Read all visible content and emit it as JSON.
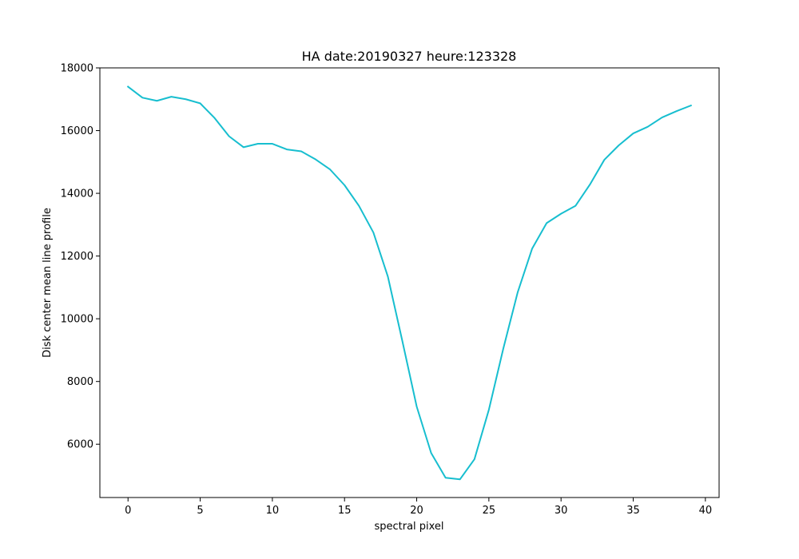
{
  "chart_data": {
    "type": "line",
    "title": "HA date:20190327 heure:123328",
    "xlabel": "spectral pixel",
    "ylabel": "Disk center mean line profile",
    "xlim": [
      -1.95,
      40.95
    ],
    "ylim": [
      4300,
      18000
    ],
    "xticks": [
      0,
      5,
      10,
      15,
      20,
      25,
      30,
      35,
      40
    ],
    "yticks": [
      6000,
      8000,
      10000,
      12000,
      14000,
      16000,
      18000
    ],
    "grid": false,
    "series": [
      {
        "color": "#17becf",
        "x": [
          0,
          1,
          2,
          3,
          4,
          5,
          6,
          7,
          8,
          9,
          10,
          11,
          12,
          13,
          14,
          15,
          16,
          17,
          18,
          19,
          20,
          21,
          22,
          23,
          24,
          25,
          26,
          27,
          28,
          29,
          30,
          31,
          32,
          33,
          34,
          35,
          36,
          37,
          38,
          39
        ],
        "y": [
          17400,
          17050,
          16950,
          17080,
          17000,
          16870,
          16400,
          15820,
          15470,
          15580,
          15580,
          15400,
          15340,
          15080,
          14760,
          14260,
          13600,
          12750,
          11350,
          9300,
          7200,
          5720,
          4930,
          4880,
          5520,
          7100,
          9050,
          10850,
          12240,
          13050,
          13350,
          13600,
          14280,
          15070,
          15530,
          15910,
          16120,
          16420,
          16620,
          16800
        ]
      }
    ]
  }
}
